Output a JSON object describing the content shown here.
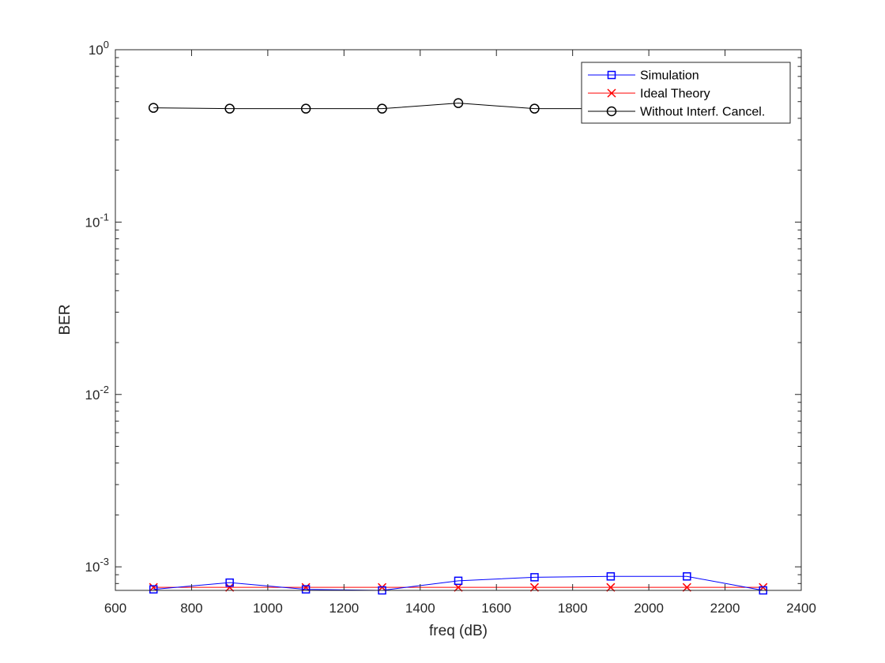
{
  "chart_data": {
    "type": "line",
    "xlabel": "freq (dB)",
    "ylabel": "BER",
    "xlim": [
      600,
      2400
    ],
    "ylim": [
      0.00073,
      1
    ],
    "yscale": "log",
    "grid": false,
    "legend_position": "top-right",
    "x_ticks": [
      600,
      800,
      1000,
      1200,
      1400,
      1600,
      1800,
      2000,
      2200,
      2400
    ],
    "y_ticks": [
      {
        "value": 0.001,
        "base": "10",
        "exp": "-3"
      },
      {
        "value": 0.01,
        "base": "10",
        "exp": "-2"
      },
      {
        "value": 0.1,
        "base": "10",
        "exp": "-1"
      },
      {
        "value": 1,
        "base": "10",
        "exp": "0"
      }
    ],
    "x": [
      700,
      900,
      1100,
      1300,
      1500,
      1700,
      1900,
      2100,
      2300
    ],
    "series": [
      {
        "name": "Simulation",
        "color": "#0000ff",
        "marker": "square",
        "values": [
          0.00074,
          0.00081,
          0.00074,
          0.00073,
          0.00083,
          0.00087,
          0.00088,
          0.00088,
          0.00073
        ]
      },
      {
        "name": "Ideal Theory",
        "color": "#ff0000",
        "marker": "x",
        "values": [
          0.00076,
          0.00076,
          0.00076,
          0.00076,
          0.00076,
          0.00076,
          0.00076,
          0.00076,
          0.00076
        ]
      },
      {
        "name": "Without Interf. Cancel.",
        "color": "#000000",
        "marker": "circle",
        "values": [
          0.46,
          0.455,
          0.455,
          0.455,
          0.49,
          0.455,
          0.455,
          0.455,
          0.455
        ]
      }
    ]
  }
}
